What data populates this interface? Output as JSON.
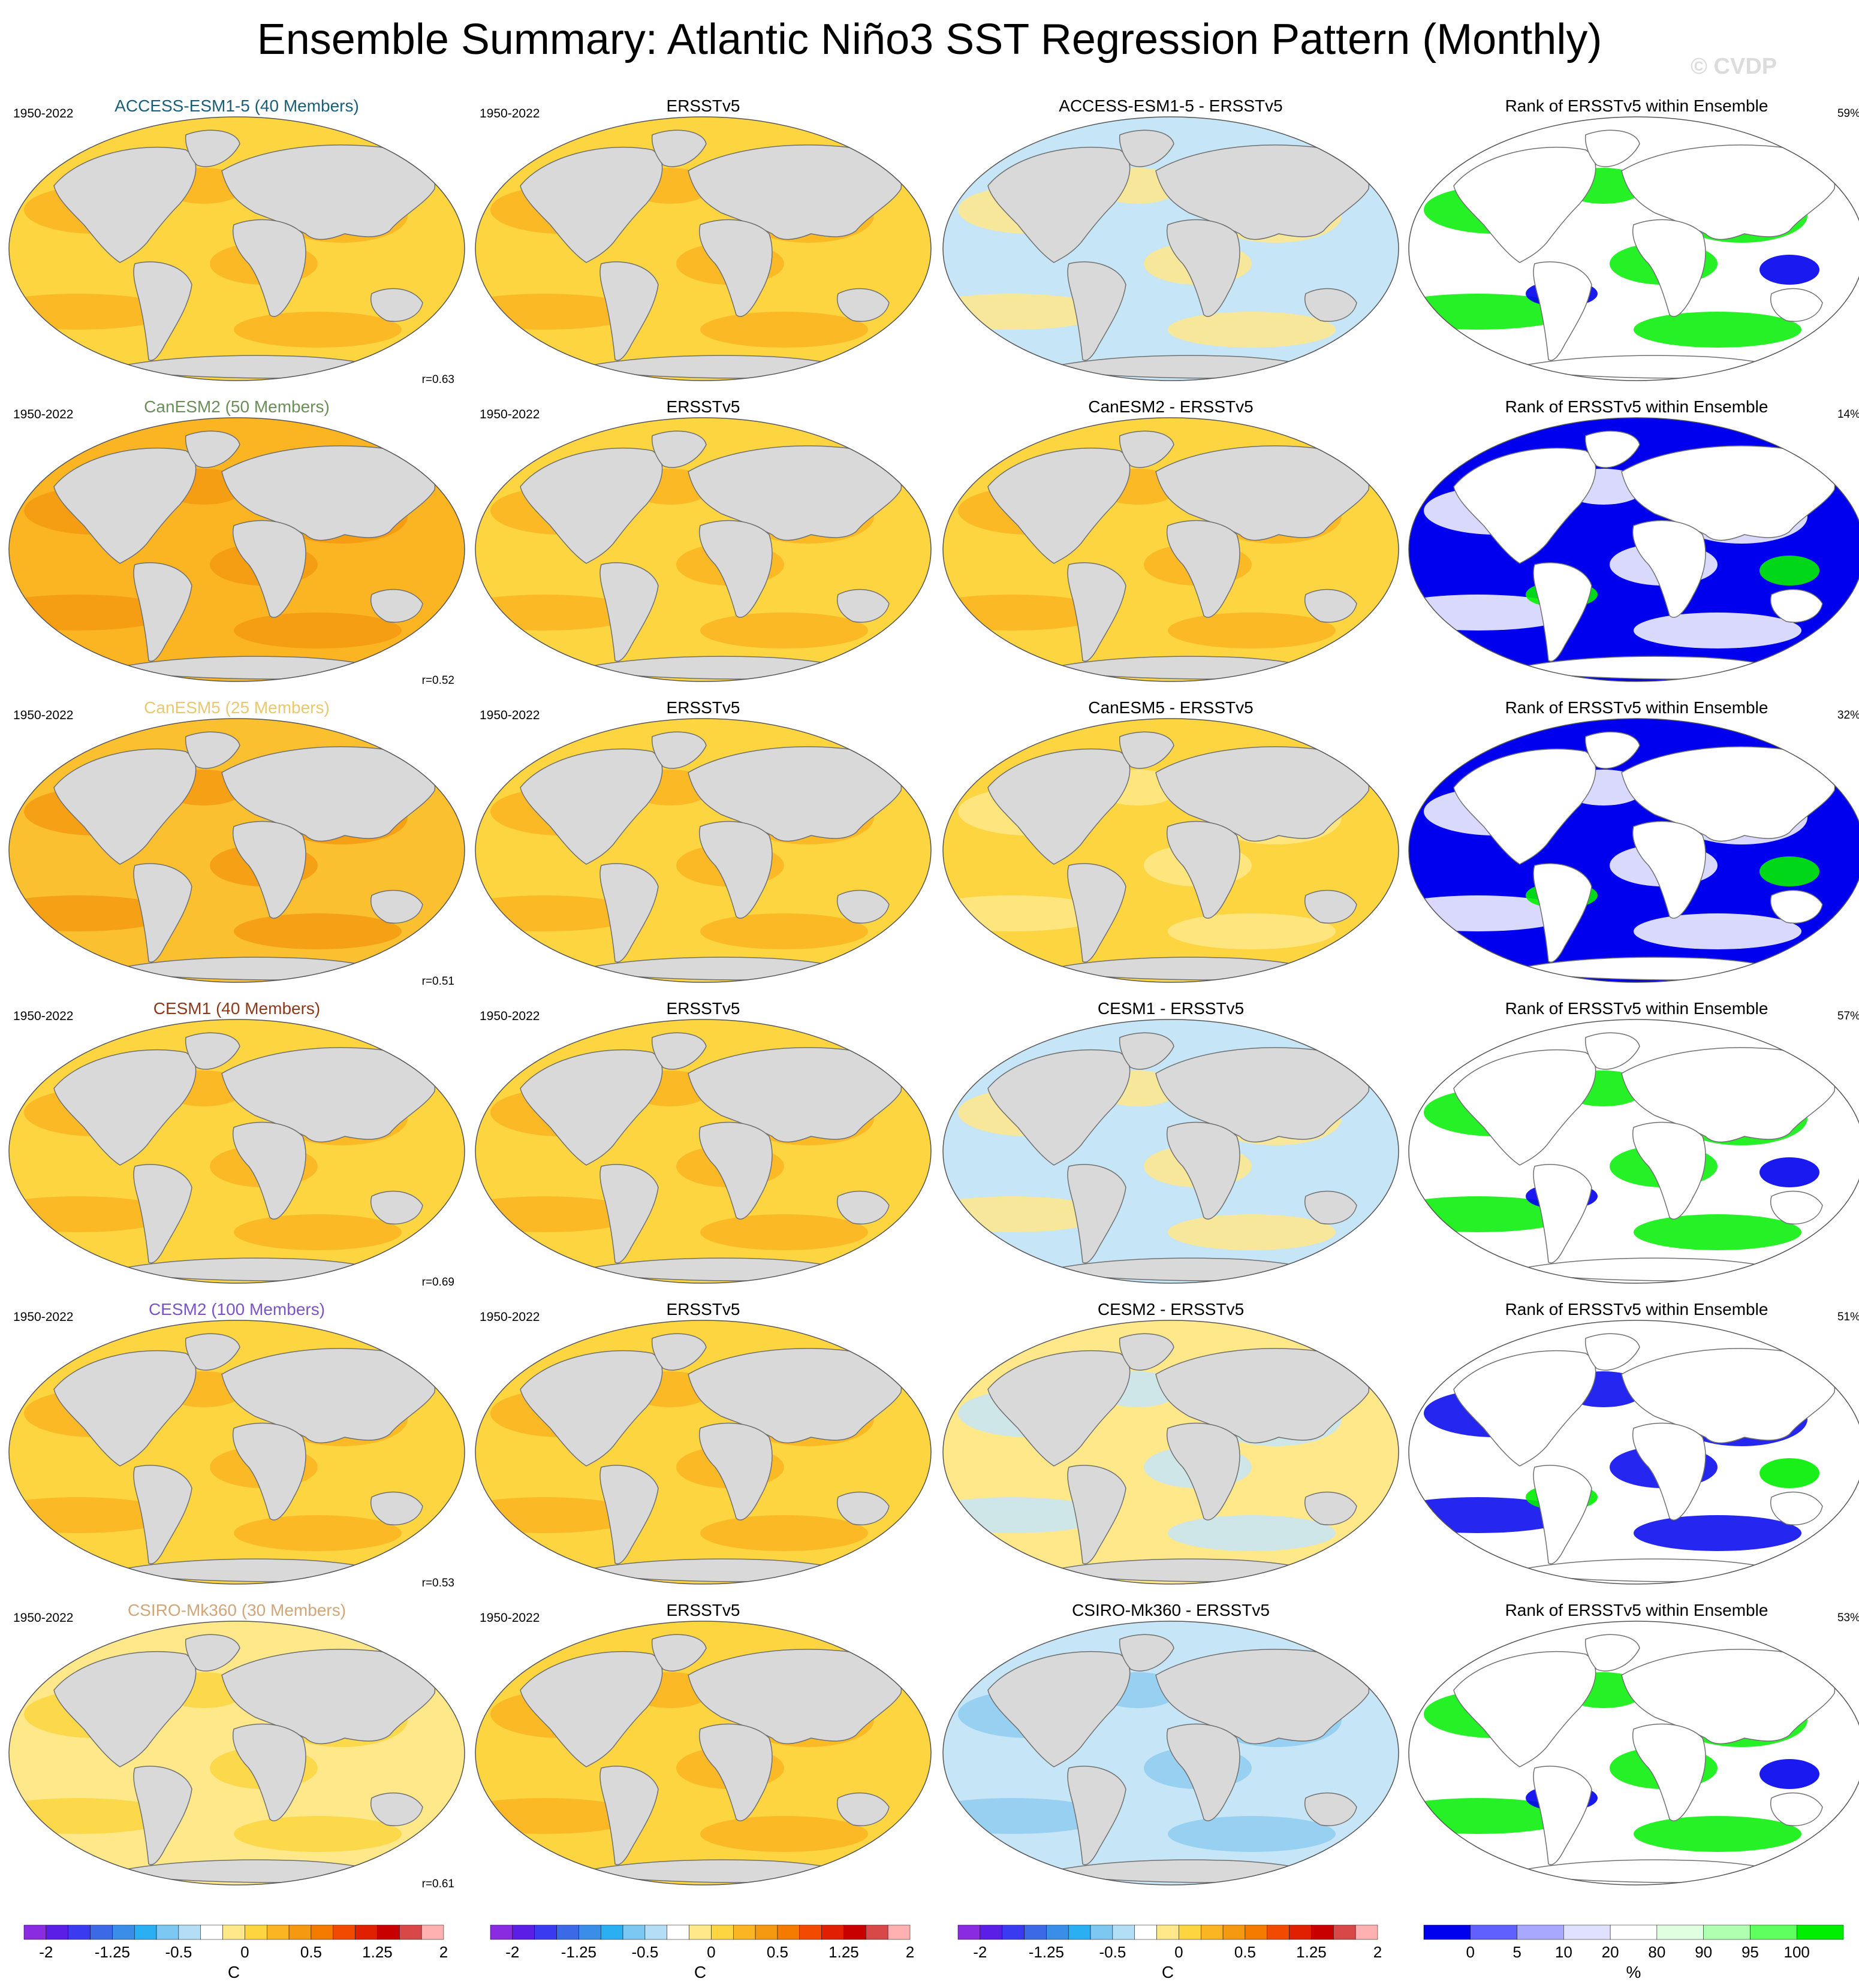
{
  "title": "Ensemble Summary: Atlantic Niño3 SST Regression Pattern (Monthly)",
  "watermark": "© CVDP",
  "rows": [
    {
      "model": "ACCESS-ESM1-5 (40 Members)",
      "model_color": "#1a5f7a",
      "period": "1950-2022",
      "obs_period": "1950-2022",
      "corr": "r=0.63",
      "diff_title": "ACCESS-ESM1-5 - ERSSTv5",
      "rank_pct": "59%",
      "model_fill": "#fcd540",
      "model_accent": "#fbb422",
      "diff_fill": "#c6e5f7",
      "diff_accent": "#ffe88a",
      "rank_fill": "#ffffff",
      "rank_main": "#00ee00",
      "rank_alt": "#0000ee"
    },
    {
      "model": "CanESM2 (50 Members)",
      "model_color": "#6b8e5a",
      "period": "1950-2022",
      "obs_period": "1950-2022",
      "corr": "r=0.52",
      "diff_title": "CanESM2 - ERSSTv5",
      "rank_pct": "14%",
      "model_fill": "#fbb422",
      "model_accent": "#f59a10",
      "diff_fill": "#fcd540",
      "diff_accent": "#fbb422",
      "rank_fill": "#0000ee",
      "rank_main": "#ffffff",
      "rank_alt": "#00ee00"
    },
    {
      "model": "CanESM5 (25 Members)",
      "model_color": "#e8c870",
      "period": "1950-2022",
      "obs_period": "1950-2022",
      "corr": "r=0.51",
      "diff_title": "CanESM5 - ERSSTv5",
      "rank_pct": "32%",
      "model_fill": "#fbc030",
      "model_accent": "#f59a10",
      "diff_fill": "#fcd540",
      "diff_accent": "#ffe88a",
      "rank_fill": "#0000ee",
      "rank_main": "#ffffff",
      "rank_alt": "#00ee00"
    },
    {
      "model": "CESM1 (40 Members)",
      "model_color": "#8b3a1a",
      "period": "1950-2022",
      "obs_period": "1950-2022",
      "corr": "r=0.69",
      "diff_title": "CESM1 - ERSSTv5",
      "rank_pct": "57%",
      "model_fill": "#fcd540",
      "model_accent": "#fbb422",
      "diff_fill": "#c6e5f7",
      "diff_accent": "#ffe88a",
      "rank_fill": "#ffffff",
      "rank_main": "#00ee00",
      "rank_alt": "#0000ee"
    },
    {
      "model": "CESM2 (100 Members)",
      "model_color": "#7a55c8",
      "period": "1950-2022",
      "obs_period": "1950-2022",
      "corr": "r=0.53",
      "diff_title": "CESM2 - ERSSTv5",
      "rank_pct": "51%",
      "model_fill": "#fcd540",
      "model_accent": "#fbb422",
      "diff_fill": "#ffe88a",
      "diff_accent": "#c6e5f7",
      "rank_fill": "#ffffff",
      "rank_main": "#0000ee",
      "rank_alt": "#00ee00"
    },
    {
      "model": "CSIRO-Mk360 (30 Members)",
      "model_color": "#d2a679",
      "period": "1950-2022",
      "obs_period": "1950-2022",
      "corr": "r=0.61",
      "diff_title": "CSIRO-Mk360 - ERSSTv5",
      "rank_pct": "53%",
      "model_fill": "#ffe88a",
      "model_accent": "#fcd540",
      "diff_fill": "#c6e5f7",
      "diff_accent": "#8fcdf0",
      "rank_fill": "#ffffff",
      "rank_main": "#00ee00",
      "rank_alt": "#0000ee"
    }
  ],
  "obs_title": "ERSSTv5",
  "rank_title": "Rank of ERSSTv5 within Ensemble",
  "obs_fill": "#fcd540",
  "obs_accent": "#fbb422",
  "land_color": "#d9d9d9",
  "sst_colorbar": {
    "unit": "C",
    "labels": [
      "-2",
      "-1.25",
      "-0.5",
      "0",
      "0.5",
      "1.25",
      "2"
    ],
    "colors": [
      "#8a2be2",
      "#5a1ee6",
      "#3a3af0",
      "#3c6ae6",
      "#3a8ee8",
      "#2aaff2",
      "#7cc8f2",
      "#b4def6",
      "#ffffff",
      "#ffe88a",
      "#fcd540",
      "#fbb422",
      "#f59a10",
      "#f57a00",
      "#f24a00",
      "#e02000",
      "#c80000",
      "#d84848",
      "#ffb0b0"
    ]
  },
  "rank_colorbar": {
    "unit": "%",
    "labels": [
      "0",
      "5",
      "10",
      "20",
      "80",
      "90",
      "95",
      "100"
    ],
    "colors": [
      "#0000ee",
      "#6060ff",
      "#a8a8ff",
      "#e0e0ff",
      "#ffffff",
      "#e0ffe0",
      "#b0ffb0",
      "#60ff60",
      "#00ee00"
    ]
  }
}
